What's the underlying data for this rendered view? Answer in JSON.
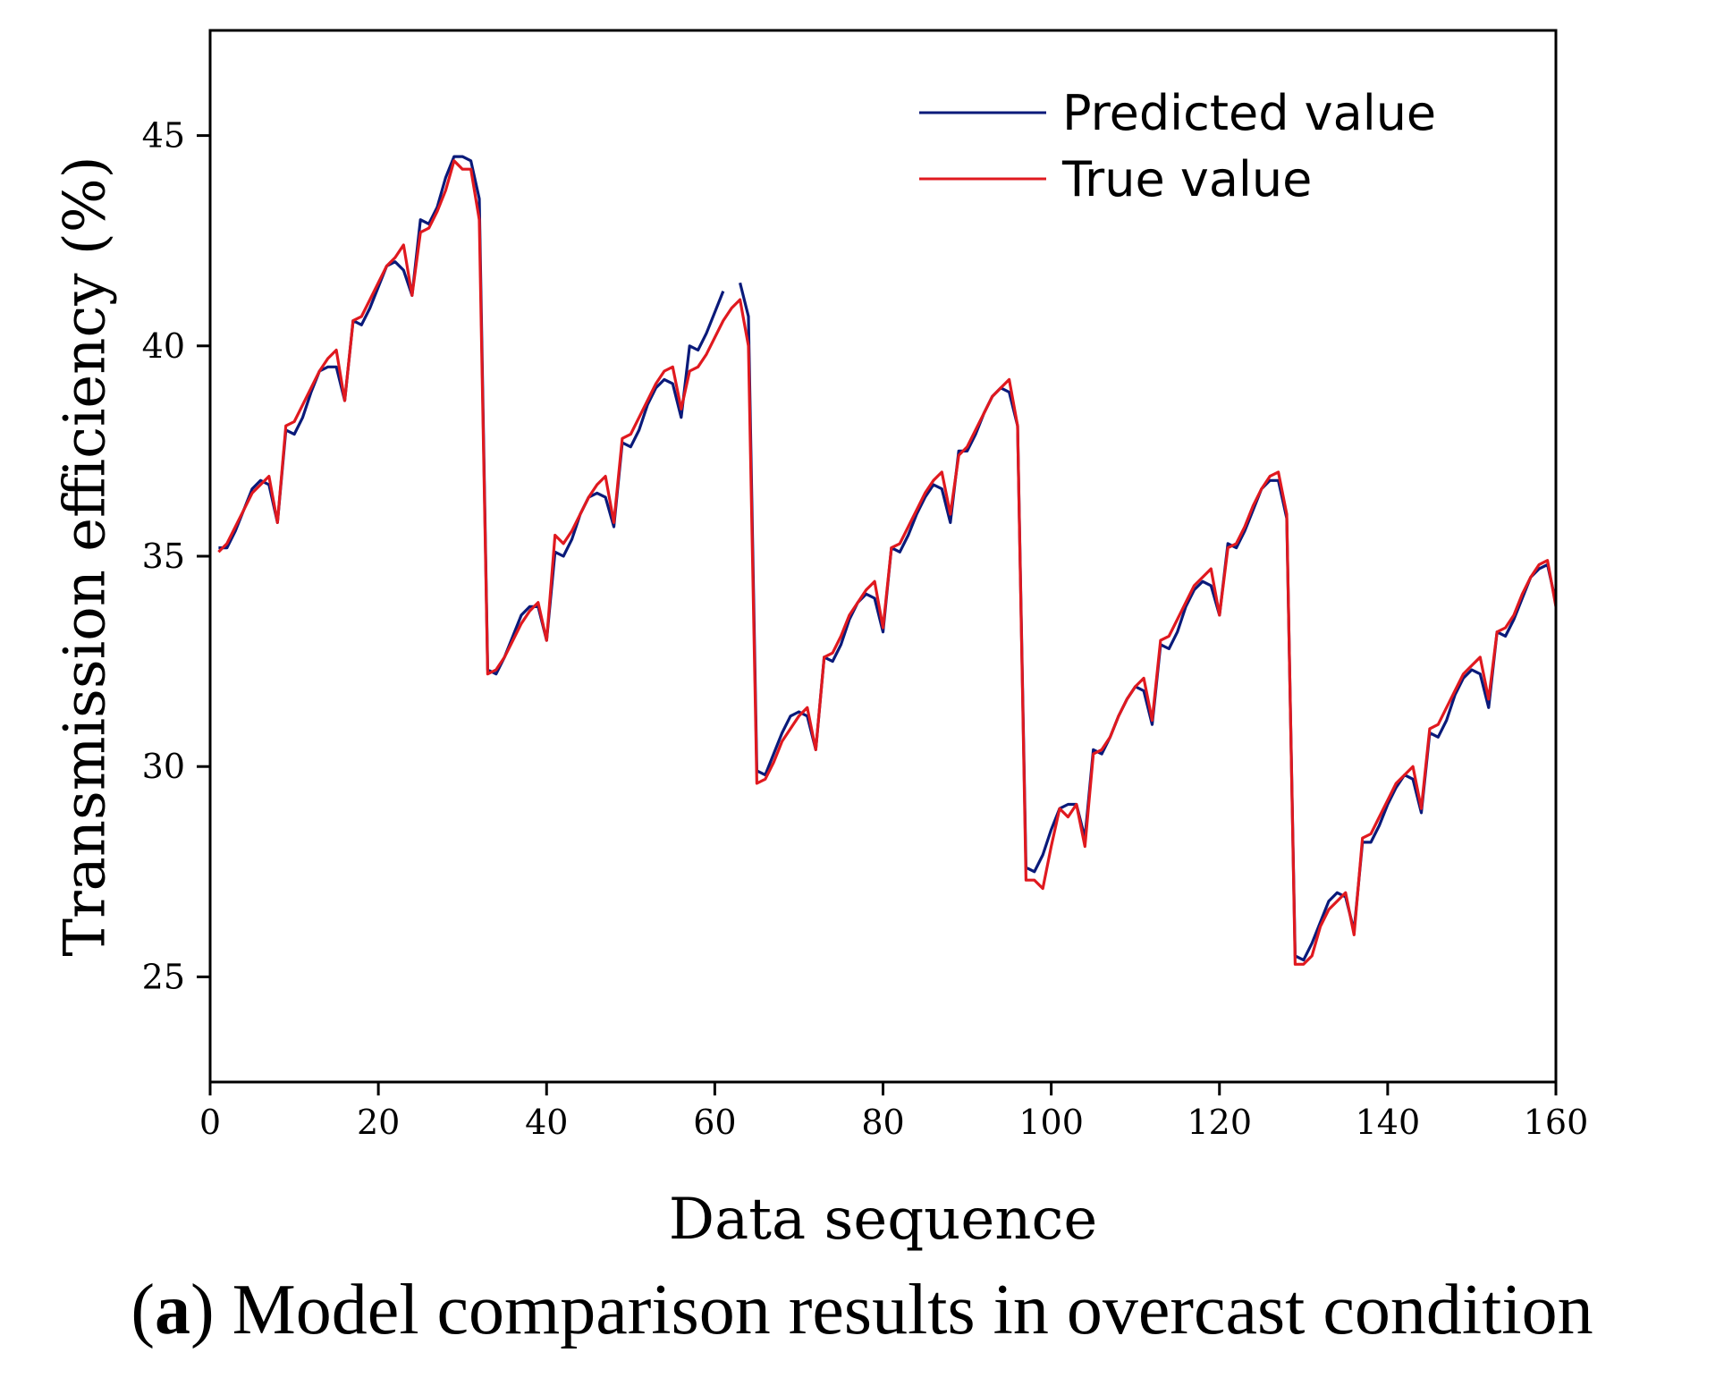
{
  "chart_data": {
    "type": "line",
    "title": "",
    "xlabel": "Data sequence",
    "ylabel": "Transmission efficiency (%)",
    "xlim": [
      0,
      160
    ],
    "ylim": [
      22.5,
      47.5
    ],
    "x_ticks": [
      0,
      20,
      40,
      60,
      80,
      100,
      120,
      140,
      160
    ],
    "y_ticks": [
      25,
      30,
      35,
      40,
      45
    ],
    "grid": false,
    "legend_position": "top-right",
    "series": [
      {
        "name": "Predicted value",
        "color": "#0a1a7a",
        "x": [
          1,
          2,
          3,
          4,
          5,
          6,
          7,
          8,
          9,
          10,
          11,
          12,
          13,
          14,
          15,
          16,
          17,
          18,
          19,
          20,
          21,
          22,
          23,
          24,
          25,
          26,
          27,
          28,
          29,
          30,
          31,
          32,
          33,
          34,
          35,
          36,
          37,
          38,
          39,
          40,
          41,
          42,
          43,
          44,
          45,
          46,
          47,
          48,
          49,
          50,
          51,
          52,
          53,
          54,
          55,
          56,
          57,
          58,
          59,
          60,
          61,
          62,
          63,
          64,
          65,
          66,
          67,
          68,
          69,
          70,
          71,
          72,
          73,
          74,
          75,
          76,
          77,
          78,
          79,
          80,
          81,
          82,
          83,
          84,
          85,
          86,
          87,
          88,
          89,
          90,
          91,
          92,
          93,
          94,
          95,
          96,
          97,
          98,
          99,
          100,
          101,
          102,
          103,
          104,
          105,
          106,
          107,
          108,
          109,
          110,
          111,
          112,
          113,
          114,
          115,
          116,
          117,
          118,
          119,
          120,
          121,
          122,
          123,
          124,
          125,
          126,
          127,
          128,
          129,
          130,
          131,
          132,
          133,
          134,
          135,
          136,
          137,
          138,
          139,
          140,
          141,
          142,
          143,
          144,
          145,
          146,
          147,
          148,
          149,
          150,
          151,
          152,
          153,
          154,
          155,
          156,
          157,
          158,
          159,
          160
        ],
        "values": [
          35.2,
          35.2,
          35.6,
          36.1,
          36.6,
          36.8,
          36.7,
          35.8,
          38.0,
          37.9,
          38.3,
          38.9,
          39.4,
          39.5,
          39.5,
          38.7,
          40.6,
          40.5,
          40.9,
          41.4,
          41.9,
          42.0,
          41.8,
          41.2,
          43.0,
          42.9,
          43.3,
          44.0,
          44.5,
          44.5,
          44.4,
          43.5,
          32.3,
          32.2,
          32.6,
          33.1,
          33.6,
          33.8,
          33.8,
          33.0,
          35.1,
          35.0,
          35.4,
          36.0,
          36.4,
          36.5,
          36.4,
          35.7,
          37.7,
          37.6,
          38.0,
          38.6,
          39.0,
          39.2,
          39.1,
          38.3,
          40.0,
          39.9,
          40.3,
          40.8,
          41.3,
          null,
          41.5,
          40.7,
          29.9,
          29.8,
          30.3,
          30.8,
          31.2,
          31.3,
          31.2,
          30.4,
          32.6,
          32.5,
          32.9,
          33.5,
          33.9,
          34.1,
          34.0,
          33.2,
          35.2,
          35.1,
          35.5,
          36.0,
          36.4,
          36.7,
          36.6,
          35.8,
          37.5,
          37.5,
          37.9,
          38.4,
          38.8,
          39.0,
          38.9,
          38.1,
          27.6,
          27.5,
          27.9,
          28.5,
          29.0,
          29.1,
          29.1,
          28.3,
          30.4,
          30.3,
          30.7,
          31.2,
          31.6,
          31.9,
          31.8,
          31.0,
          32.9,
          32.8,
          33.2,
          33.8,
          34.2,
          34.4,
          34.3,
          33.6,
          35.3,
          35.2,
          35.6,
          36.1,
          36.6,
          36.8,
          36.8,
          35.9,
          25.5,
          25.4,
          25.8,
          26.3,
          26.8,
          27.0,
          26.9,
          26.1,
          28.2,
          28.2,
          28.6,
          29.1,
          29.5,
          29.8,
          29.7,
          28.9,
          30.8,
          30.7,
          31.1,
          31.7,
          32.1,
          32.3,
          32.2,
          31.4,
          33.2,
          33.1,
          33.5,
          34.0,
          34.5,
          34.7,
          34.8,
          33.9
        ]
      },
      {
        "name": "True value",
        "color": "#e0191f",
        "x": [
          1,
          2,
          3,
          4,
          5,
          6,
          7,
          8,
          9,
          10,
          11,
          12,
          13,
          14,
          15,
          16,
          17,
          18,
          19,
          20,
          21,
          22,
          23,
          24,
          25,
          26,
          27,
          28,
          29,
          30,
          31,
          32,
          33,
          34,
          35,
          36,
          37,
          38,
          39,
          40,
          41,
          42,
          43,
          44,
          45,
          46,
          47,
          48,
          49,
          50,
          51,
          52,
          53,
          54,
          55,
          56,
          57,
          58,
          59,
          60,
          61,
          62,
          63,
          64,
          65,
          66,
          67,
          68,
          69,
          70,
          71,
          72,
          73,
          74,
          75,
          76,
          77,
          78,
          79,
          80,
          81,
          82,
          83,
          84,
          85,
          86,
          87,
          88,
          89,
          90,
          91,
          92,
          93,
          94,
          95,
          96,
          97,
          98,
          99,
          100,
          101,
          102,
          103,
          104,
          105,
          106,
          107,
          108,
          109,
          110,
          111,
          112,
          113,
          114,
          115,
          116,
          117,
          118,
          119,
          120,
          121,
          122,
          123,
          124,
          125,
          126,
          127,
          128,
          129,
          130,
          131,
          132,
          133,
          134,
          135,
          136,
          137,
          138,
          139,
          140,
          141,
          142,
          143,
          144,
          145,
          146,
          147,
          148,
          149,
          150,
          151,
          152,
          153,
          154,
          155,
          156,
          157,
          158,
          159,
          160
        ],
        "values": [
          35.1,
          35.3,
          35.7,
          36.1,
          36.5,
          36.7,
          36.9,
          35.8,
          38.1,
          38.2,
          38.6,
          39.0,
          39.4,
          39.7,
          39.9,
          38.7,
          40.6,
          40.7,
          41.1,
          41.5,
          41.9,
          42.1,
          42.4,
          41.2,
          42.7,
          42.8,
          43.2,
          43.7,
          44.4,
          44.2,
          44.2,
          43.0,
          32.2,
          32.3,
          32.6,
          33.0,
          33.4,
          33.7,
          33.9,
          33.0,
          35.5,
          35.3,
          35.6,
          36.0,
          36.4,
          36.7,
          36.9,
          35.8,
          37.8,
          37.9,
          38.3,
          38.7,
          39.1,
          39.4,
          39.5,
          38.5,
          39.4,
          39.5,
          39.8,
          40.2,
          40.6,
          40.9,
          41.1,
          40.0,
          29.6,
          29.7,
          30.1,
          30.6,
          30.9,
          31.2,
          31.4,
          30.4,
          32.6,
          32.7,
          33.1,
          33.6,
          33.9,
          34.2,
          34.4,
          33.3,
          35.2,
          35.3,
          35.7,
          36.1,
          36.5,
          36.8,
          37.0,
          36.0,
          37.4,
          37.6,
          38.0,
          38.4,
          38.8,
          39.0,
          39.2,
          38.1,
          27.3,
          27.3,
          27.1,
          28.1,
          29.0,
          28.8,
          29.1,
          28.1,
          30.3,
          30.4,
          30.7,
          31.2,
          31.6,
          31.9,
          32.1,
          31.1,
          33.0,
          33.1,
          33.5,
          33.9,
          34.3,
          34.5,
          34.7,
          33.6,
          35.2,
          35.3,
          35.7,
          36.2,
          36.6,
          36.9,
          37.0,
          36.0,
          25.3,
          25.3,
          25.5,
          26.2,
          26.6,
          26.8,
          27.0,
          26.0,
          28.3,
          28.4,
          28.8,
          29.2,
          29.6,
          29.8,
          30.0,
          29.0,
          30.9,
          31.0,
          31.4,
          31.8,
          32.2,
          32.4,
          32.6,
          31.6,
          33.2,
          33.3,
          33.6,
          34.1,
          34.5,
          34.8,
          34.9,
          33.8
        ]
      }
    ]
  },
  "caption": {
    "letter": "a",
    "text": " Model comparison results in overcast condition"
  }
}
